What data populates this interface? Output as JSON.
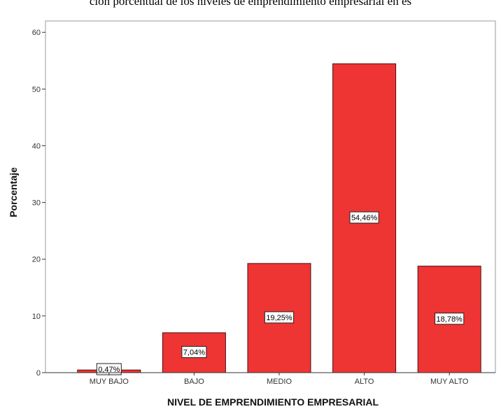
{
  "caption": "ción porcentual de los niveles de emprendimiento empresarial en es",
  "chart_data": {
    "type": "bar",
    "categories": [
      "MUY BAJO",
      "BAJO",
      "MEDIO",
      "ALTO",
      "MUY ALTO"
    ],
    "values": [
      0.47,
      7.04,
      19.25,
      54.46,
      18.78
    ],
    "data_labels": [
      "0,47%",
      "7,04%",
      "19,25%",
      "54,46%",
      "18,78%"
    ],
    "xlabel": "NIVEL DE EMPRENDIMIENTO EMPRESARIAL",
    "ylabel": "Porcentaje",
    "ylim": [
      0,
      62
    ],
    "yticks": [
      0,
      10,
      20,
      30,
      40,
      50,
      60
    ],
    "bar_color": "#ef3434",
    "bar_edge_color": "#4a1010",
    "grid": false
  }
}
